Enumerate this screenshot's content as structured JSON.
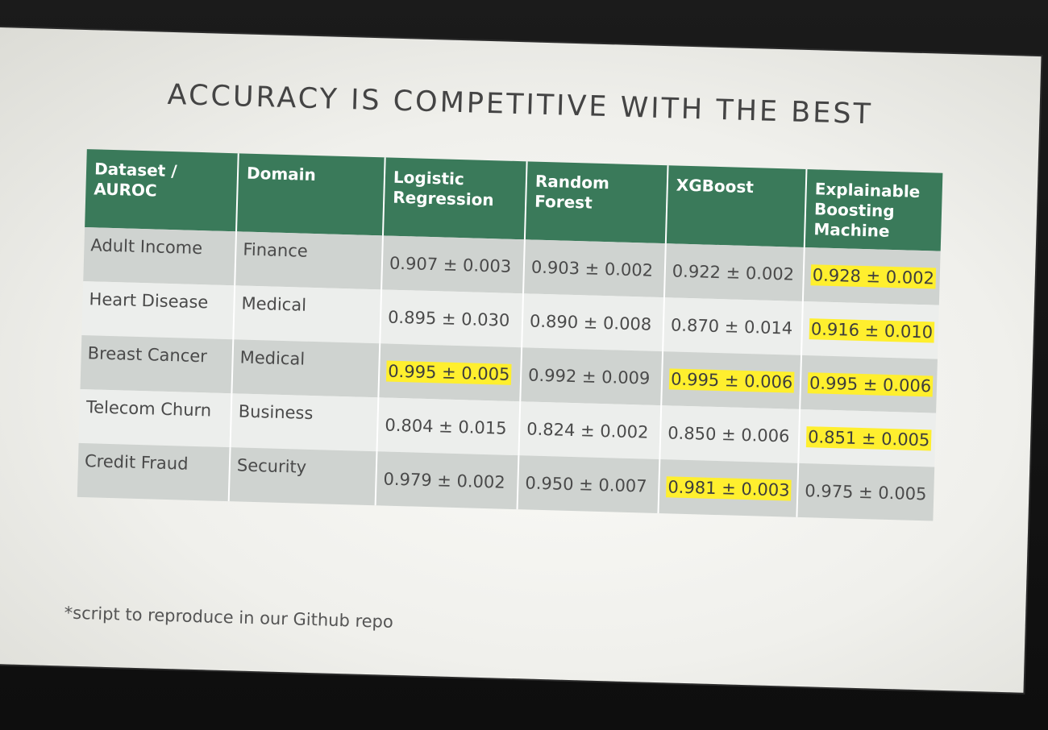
{
  "chart_data": {
    "type": "table",
    "title": "ACCURACY IS COMPETITIVE WITH THE BEST",
    "columns": [
      "Dataset / AUROC",
      "Domain",
      "Logistic Regression",
      "Random Forest",
      "XGBoost",
      "Explainable Boosting Machine"
    ],
    "rows": [
      {
        "dataset": "Adult Income",
        "domain": "Finance",
        "scores": [
          "0.907 ± 0.003",
          "0.903 ± 0.002",
          "0.922 ± 0.002",
          "0.928 ± 0.002"
        ],
        "highlighted": [
          false,
          false,
          false,
          true
        ]
      },
      {
        "dataset": "Heart Disease",
        "domain": "Medical",
        "scores": [
          "0.895 ± 0.030",
          "0.890 ± 0.008",
          "0.870 ± 0.014",
          "0.916 ± 0.010"
        ],
        "highlighted": [
          false,
          false,
          false,
          true
        ]
      },
      {
        "dataset": "Breast Cancer",
        "domain": "Medical",
        "scores": [
          "0.995 ± 0.005",
          "0.992 ± 0.009",
          "0.995 ± 0.006",
          "0.995 ± 0.006"
        ],
        "highlighted": [
          true,
          false,
          true,
          true
        ]
      },
      {
        "dataset": "Telecom Churn",
        "domain": "Business",
        "scores": [
          "0.804 ± 0.015",
          "0.824 ± 0.002",
          "0.850 ± 0.006",
          "0.851 ± 0.005"
        ],
        "highlighted": [
          false,
          false,
          false,
          true
        ]
      },
      {
        "dataset": "Credit Fraud",
        "domain": "Security",
        "scores": [
          "0.979 ± 0.002",
          "0.950 ± 0.007",
          "0.981 ± 0.003",
          "0.975 ± 0.005"
        ],
        "highlighted": [
          false,
          false,
          true,
          false
        ]
      }
    ],
    "footnote": "*script to reproduce in our Github repo"
  },
  "colors": {
    "header_background": "#3a7a5a",
    "highlight": "#ffef2e",
    "row_shaded": "#cfd3d0",
    "row_light": "#eceeec"
  }
}
